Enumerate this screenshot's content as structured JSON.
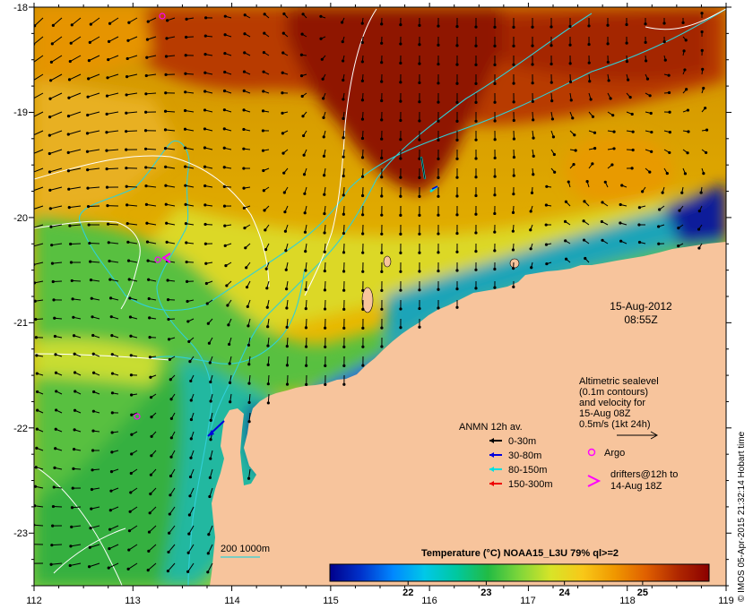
{
  "map": {
    "date_label": "15-Aug-2012",
    "time_label": "08:55Z",
    "x_ticks": [
      "112",
      "113",
      "114",
      "115",
      "116",
      "117",
      "118",
      "119"
    ],
    "y_ticks": [
      "-18",
      "-19",
      "-20",
      "-21",
      "-22",
      "-23"
    ],
    "lon_range": [
      112,
      119
    ],
    "lat_range": [
      -23.5,
      -18
    ]
  },
  "altimetry": {
    "lines": [
      "Altimetric sealevel",
      "(0.1m contours)",
      "and velocity for",
      "15-Aug 08Z",
      "0.5m/s (1kt 24h)"
    ]
  },
  "legend": {
    "title": "ANMN 12h av.",
    "items": [
      {
        "label": "0-30m",
        "color": "#000000"
      },
      {
        "label": "30-80m",
        "color": "#0000dd"
      },
      {
        "label": "80-150m",
        "color": "#00e0e0"
      },
      {
        "label": "150-300m",
        "color": "#ee0000"
      }
    ],
    "argo_label": "Argo",
    "argo_color": "#ff00ff",
    "drifters_lines": [
      "drifters@12h to",
      "14-Aug 18Z"
    ],
    "isobath_label": "200  1000m"
  },
  "colorbar": {
    "title": "Temperature (°C) NOAA15_L3U 79% ql>=2",
    "ticks": [
      "22",
      "23",
      "24",
      "25"
    ],
    "tick_values": [
      22,
      23,
      24,
      25
    ],
    "range": [
      21.0,
      25.85
    ],
    "colors": [
      "#00008b",
      "#0033cc",
      "#0088ff",
      "#00c8e8",
      "#00c8a0",
      "#22bb44",
      "#7fd63a",
      "#d8e428",
      "#f8c818",
      "#f09800",
      "#e06000",
      "#b02800",
      "#8b0000"
    ]
  },
  "credit": "© IMOS 05-Apr-2015 21:32:14 Hobart time"
}
